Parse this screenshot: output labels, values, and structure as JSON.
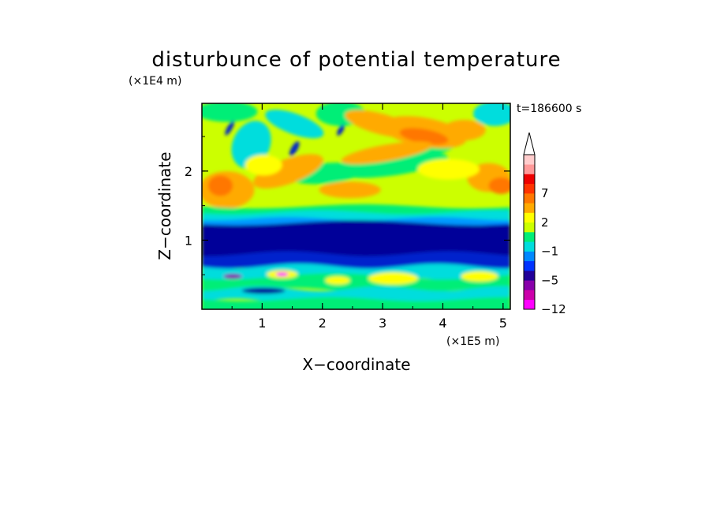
{
  "chart_data": {
    "type": "heatmap",
    "title": "disturbunce of potential temperature",
    "time_label": "t=186600 s",
    "xlabel": "X−coordinate",
    "ylabel": "Z−coordinate",
    "x_scale_label": "(×1E5 m)",
    "y_scale_label": "(×1E4 m)",
    "xlim": [
      0,
      5.12
    ],
    "ylim": [
      0,
      2.98
    ],
    "x_ticks": [
      {
        "value": 1,
        "label": "1"
      },
      {
        "value": 2,
        "label": "2"
      },
      {
        "value": 3,
        "label": "3"
      },
      {
        "value": 4,
        "label": "4"
      },
      {
        "value": 5,
        "label": "5"
      }
    ],
    "y_ticks": [
      {
        "value": 1,
        "label": "1"
      },
      {
        "value": 2,
        "label": "2"
      }
    ],
    "colorbar": {
      "colors": [
        "#ff00ff",
        "#cc00aa",
        "#8800aa",
        "#220099",
        "#0033ff",
        "#0088ff",
        "#00dddd",
        "#00ee77",
        "#ccff00",
        "#ffff00",
        "#ffaa00",
        "#ff7700",
        "#ff3300",
        "#ee0000",
        "#ff9999",
        "#ffcccc"
      ],
      "labels": [
        {
          "value": -12,
          "label": "−12"
        },
        {
          "value": -5,
          "label": "−5"
        },
        {
          "value": -1,
          "label": "−1"
        },
        {
          "value": 2,
          "label": "2"
        },
        {
          "value": 7,
          "label": "7"
        }
      ],
      "extend": "max"
    }
  }
}
